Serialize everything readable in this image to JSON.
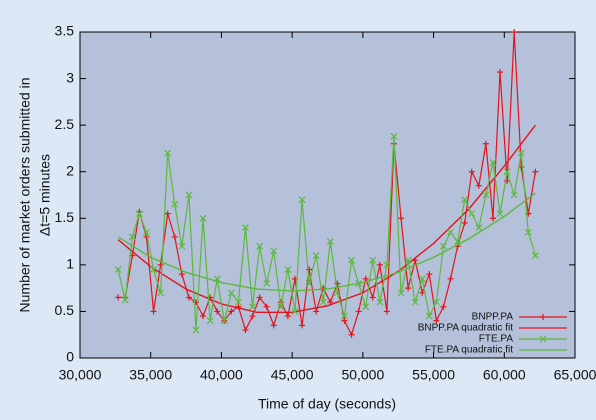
{
  "chart_data": {
    "type": "line",
    "xlabel": "Time of day (seconds)",
    "ylabel": [
      "Number of market orders submitted in",
      "Δt=5 minutes"
    ],
    "xlim": [
      30000,
      65000
    ],
    "xticks": [
      {
        "value": 30000,
        "label": "30,000"
      },
      {
        "value": 35000,
        "label": "35,000"
      },
      {
        "value": 40000,
        "label": "40,000"
      },
      {
        "value": 45000,
        "label": "45,000"
      },
      {
        "value": 50000,
        "label": "50,000"
      },
      {
        "value": 55000,
        "label": "55,000"
      },
      {
        "value": 60000,
        "label": "60,000"
      },
      {
        "value": 65000,
        "label": "65,000"
      }
    ],
    "ylim": [
      0,
      3.5
    ],
    "yticks": [
      0,
      0.5,
      1,
      1.5,
      2,
      2.5,
      3,
      3.5
    ],
    "grid": false,
    "legend": "lower right",
    "x": [
      32700,
      33200,
      33700,
      34200,
      34700,
      35200,
      35700,
      36200,
      36700,
      37200,
      37700,
      38200,
      38700,
      39200,
      39700,
      40200,
      40700,
      41200,
      41700,
      42200,
      42700,
      43200,
      43700,
      44200,
      44700,
      45200,
      45700,
      46200,
      46700,
      47200,
      47700,
      48200,
      48700,
      49200,
      49700,
      50200,
      50700,
      51200,
      51700,
      52200,
      52700,
      53200,
      53700,
      54200,
      54700,
      55200,
      55700,
      56200,
      56700,
      57200,
      57700,
      58200,
      58700,
      59200,
      59700,
      60200,
      60700,
      61200,
      61700,
      62200
    ],
    "series": [
      {
        "name": "BNPP.PA",
        "color": "#e3141c",
        "marker": "plus",
        "values": [
          0.65,
          0.65,
          1.1,
          1.57,
          1.3,
          0.5,
          1.0,
          1.55,
          1.3,
          0.9,
          0.65,
          0.6,
          0.45,
          0.65,
          0.5,
          0.4,
          0.5,
          0.55,
          0.3,
          0.45,
          0.65,
          0.55,
          0.35,
          0.6,
          0.45,
          0.85,
          0.35,
          0.95,
          0.5,
          0.75,
          0.6,
          0.8,
          0.4,
          0.25,
          0.5,
          0.85,
          0.65,
          1.0,
          0.5,
          2.3,
          1.5,
          0.75,
          1.05,
          0.7,
          0.9,
          0.4,
          0.55,
          0.85,
          1.2,
          1.45,
          2.0,
          1.85,
          2.3,
          1.5,
          3.07,
          1.9,
          3.5,
          2.05,
          1.55,
          2.0
        ]
      },
      {
        "name": "BNPP.PA quadratic fit",
        "color": "#e3141c",
        "x": [
          32700,
          35000,
          37500,
          40000,
          42500,
          45000,
          47500,
          50000,
          52500,
          55000,
          57500,
          60000,
          62200
        ],
        "values": [
          1.27,
          0.98,
          0.74,
          0.58,
          0.49,
          0.49,
          0.56,
          0.7,
          0.93,
          1.23,
          1.6,
          2.06,
          2.5
        ]
      },
      {
        "name": "FTE.PA",
        "color": "#5cb93c",
        "marker": "cross",
        "values": [
          0.95,
          0.62,
          1.3,
          1.55,
          1.35,
          0.95,
          0.7,
          2.2,
          1.65,
          1.2,
          1.75,
          0.3,
          1.5,
          0.4,
          0.85,
          0.4,
          0.7,
          0.6,
          1.4,
          0.55,
          1.2,
          0.8,
          1.15,
          0.55,
          0.95,
          0.5,
          1.7,
          0.8,
          1.1,
          0.6,
          1.25,
          0.7,
          0.45,
          1.05,
          0.8,
          0.55,
          1.05,
          0.6,
          1.0,
          2.38,
          0.7,
          1.05,
          0.6,
          0.85,
          0.45,
          0.6,
          1.2,
          1.35,
          1.25,
          1.7,
          1.55,
          1.4,
          1.75,
          2.1,
          1.55,
          2.0,
          1.75,
          2.2,
          1.35,
          1.1
        ]
      },
      {
        "name": "FTE.PA quadratic fit",
        "color": "#5cb93c",
        "x": [
          32700,
          35000,
          37500,
          40000,
          42500,
          45000,
          47500,
          50000,
          52500,
          55000,
          57500,
          60000,
          62200
        ],
        "values": [
          1.3,
          1.08,
          0.92,
          0.81,
          0.74,
          0.72,
          0.74,
          0.81,
          0.92,
          1.08,
          1.28,
          1.52,
          1.77
        ]
      }
    ]
  }
}
